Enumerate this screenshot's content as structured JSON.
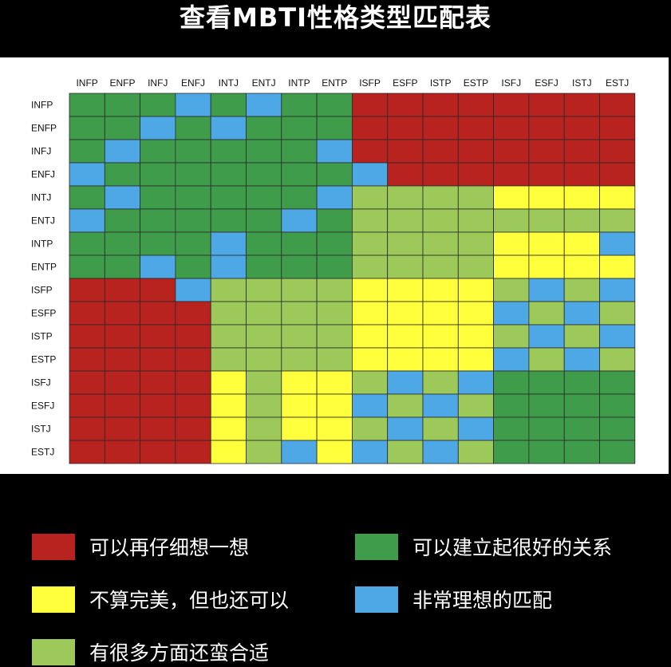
{
  "title": "查看MBTI性格类型匹配表",
  "colors": {
    "red": "#b8221f",
    "green": "#3f9c4a",
    "blue": "#4ea8e6",
    "yellow": "#ffff3b",
    "lightgreen": "#9dc85a"
  },
  "legend": [
    {
      "key": "red",
      "label": "可以再仔细想一想"
    },
    {
      "key": "green",
      "label": "可以建立起很好的关系"
    },
    {
      "key": "yellow",
      "label": "不算完美，但也还可以"
    },
    {
      "key": "blue",
      "label": "非常理想的匹配"
    },
    {
      "key": "lightgreen",
      "label": "有很多方面还蛮合适"
    }
  ],
  "chart_data": {
    "type": "heatmap",
    "x": [
      "INFP",
      "ENFP",
      "INFJ",
      "ENFJ",
      "INTJ",
      "ENTJ",
      "INTP",
      "ENTP",
      "ISFP",
      "ESFP",
      "ISTP",
      "ESTP",
      "ISFJ",
      "ESFJ",
      "ISTJ",
      "ESTJ"
    ],
    "y": [
      "INFP",
      "ENFP",
      "INFJ",
      "ENFJ",
      "INTJ",
      "ENTJ",
      "INTP",
      "ENTP",
      "ISFP",
      "ESFP",
      "ISTP",
      "ESTP",
      "ISFJ",
      "ESFJ",
      "ISTJ",
      "ESTJ"
    ],
    "codes": {
      "R": "red",
      "G": "green",
      "B": "blue",
      "Y": "yellow",
      "L": "lightgreen"
    },
    "matrix": [
      "GGGBGBGGRRRRRRRR",
      "GGBGBGGGRRRRRRRR",
      "GBGGGGGBRRRRRRRR",
      "BGGGGGGGBRRRRRRR",
      "GBGGGGGBLLLLYYYY",
      "BGGGGGBGLLLLLLLL",
      "GGGGBGGGLLLLYYYB",
      "GGBGBGGGLLLLYYYY",
      "RRRBLLLLYYYYLBLB",
      "RRRRLLLLYYYYBLBL",
      "RRRRLLLLYYYYLBLB",
      "RRRRLLLLYYYYBLBL",
      "RRRRYLYYLBLBGGGG",
      "RRRRYLYYBLBLGGGG",
      "RRRRYLYYLBLBGGGG",
      "RRRRYLBYBLBLGGGG"
    ]
  }
}
